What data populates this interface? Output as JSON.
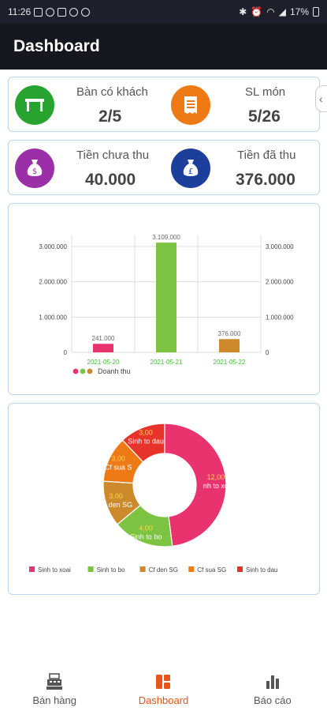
{
  "status_bar": {
    "time": "11:26",
    "battery": "17%"
  },
  "app_bar": {
    "title": "Dashboard"
  },
  "stats": {
    "tables": {
      "label": "Bàn có khách",
      "value": "2/5",
      "color": "#27a32f"
    },
    "dishes": {
      "label": "SL món",
      "value": "5/26",
      "color": "#ee7a16"
    },
    "unpaid": {
      "label": "Tiền chưa thu",
      "value": "40.000",
      "color": "#9b2fa8"
    },
    "paid": {
      "label": "Tiền đã thu",
      "value": "376.000",
      "color": "#1c3f9c"
    }
  },
  "chart_data": [
    {
      "type": "bar",
      "categories": [
        "2021-05-20",
        "2021-05-21",
        "2021-05-22"
      ],
      "values": [
        241000,
        3109000,
        376000
      ],
      "value_labels": [
        "241.000",
        "3.109.000",
        "376.000"
      ],
      "colors": [
        "#e8336f",
        "#7cc243",
        "#cc8a2c"
      ],
      "ylim": [
        0,
        3000000
      ],
      "yticks": [
        "0",
        "1.000.000",
        "2.000.000",
        "3.000.000"
      ],
      "legend": "Doanh thu",
      "legend_colors": [
        "#e8336f",
        "#7cc243",
        "#cc8a2c"
      ],
      "grid": true
    },
    {
      "type": "pie",
      "labels": [
        "Sinh to xoai",
        "Sinh to bo",
        "Cf den SG",
        "Cf sua SG",
        "Sinh to dau"
      ],
      "values": [
        12,
        4,
        3,
        3,
        3
      ],
      "value_labels": [
        "12,00",
        "4,00",
        "3,00",
        "3,00",
        "3,00"
      ],
      "slice_labels": [
        "nh to xo",
        "Sinh to bo",
        "Cf den SG",
        "Cf sua S",
        "Sinh to dau"
      ],
      "colors": [
        "#e8336f",
        "#7cc243",
        "#cc8a2c",
        "#ee7a16",
        "#e8332b"
      ],
      "donut": true
    }
  ],
  "bottom_nav": [
    {
      "label": "Bán hàng",
      "icon": "cash-register-icon",
      "active": false
    },
    {
      "label": "Dashboard",
      "icon": "dashboard-icon",
      "active": true
    },
    {
      "label": "Báo cáo",
      "icon": "bar-chart-icon",
      "active": false
    }
  ],
  "colors": {
    "accent": "#e8541a",
    "app_bar": "#16161f",
    "card_border": "#b9d6ee"
  }
}
